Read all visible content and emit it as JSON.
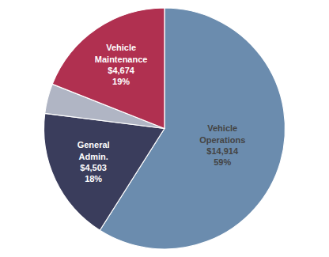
{
  "chart_data": {
    "type": "pie",
    "categories": [
      "Vehicle\nOperations",
      "General\nAdmin.",
      null,
      "Vehicle\nMaintenance"
    ],
    "values": [
      59,
      18,
      4,
      19
    ],
    "value_labels": [
      "$14,914\n59%",
      "$4,503\n18%",
      null,
      "$4,674\n19%"
    ],
    "colors": [
      "#6b8cae",
      "#3a3d5c",
      "#b0b5c4",
      "#b03050"
    ],
    "data_labels": true
  }
}
